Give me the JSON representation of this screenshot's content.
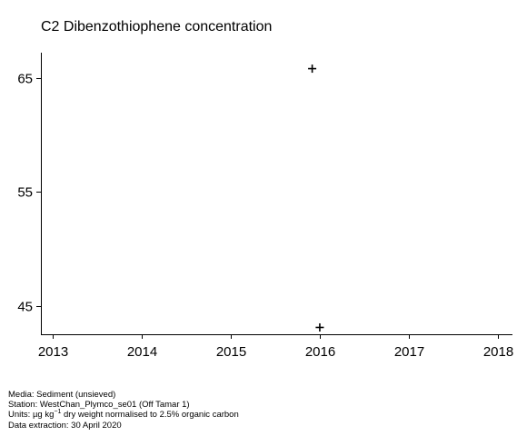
{
  "chart_data": {
    "type": "scatter",
    "title": "C2 Dibenzothiophene concentration",
    "xlabel": "",
    "ylabel": "",
    "marker": "+",
    "x_ticks": [
      "2013",
      "2014",
      "2015",
      "2016",
      "2017",
      "2018"
    ],
    "y_ticks": [
      "45",
      "55",
      "65"
    ],
    "xlim": [
      "2012-11-15",
      "2018-03-01"
    ],
    "ylim": [
      42.5,
      67.2
    ],
    "points": [
      {
        "x": "2015-12-01",
        "y": 65.8
      },
      {
        "x": "2016-01-01",
        "y": 43.1
      }
    ],
    "grid": false,
    "legend": "none"
  },
  "footer": {
    "media": "Media: Sediment (unsieved)",
    "station": "Station: WestChan_Plymco_se01 (Off Tamar 1)",
    "units_prefix": "Units: ",
    "units_mu": "µg kg",
    "units_exp": "−1",
    "units_suffix": " dry weight normalised to 2.5% organic carbon",
    "extraction": "Data extraction: 30 April 2020"
  },
  "colors": {
    "axis": "#000000",
    "marker": "#000000",
    "background": "#ffffff"
  }
}
